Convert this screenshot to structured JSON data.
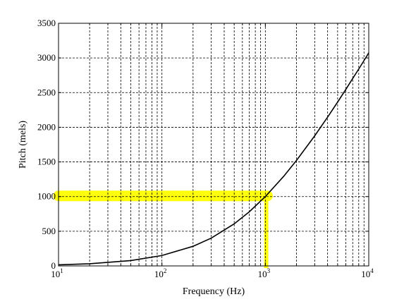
{
  "chart_data": {
    "type": "line",
    "title": "",
    "xlabel": "Frequency (Hz)",
    "ylabel": "Pitch (mels)",
    "xscale": "log",
    "xlim": [
      10,
      10000
    ],
    "ylim": [
      0,
      3500
    ],
    "grid": true,
    "grid_style": "dashed",
    "x_ticks": [
      {
        "value": 10,
        "base": "10",
        "exp": "1"
      },
      {
        "value": 100,
        "base": "10",
        "exp": "2"
      },
      {
        "value": 1000,
        "base": "10",
        "exp": "3"
      },
      {
        "value": 10000,
        "base": "10",
        "exp": "4"
      }
    ],
    "y_ticks": [
      {
        "value": 0,
        "label": "0"
      },
      {
        "value": 500,
        "label": "500"
      },
      {
        "value": 1000,
        "label": "1000"
      },
      {
        "value": 1500,
        "label": "1500"
      },
      {
        "value": 2000,
        "label": "2000"
      },
      {
        "value": 2500,
        "label": "2500"
      },
      {
        "value": 3000,
        "label": "3000"
      },
      {
        "value": 3500,
        "label": "3500"
      }
    ],
    "series": [
      {
        "color": "#000000",
        "x": [
          10,
          20,
          50,
          100,
          200,
          300,
          500,
          700,
          1000,
          1500,
          2000,
          3000,
          4000,
          5000,
          6000,
          7000,
          8000,
          9000,
          10000
        ],
        "y": [
          16,
          31,
          77,
          150,
          283,
          401,
          607,
          781,
          1000,
          1290,
          1521,
          1876,
          2146,
          2363,
          2546,
          2704,
          2840,
          2962,
          3073
        ]
      }
    ],
    "highlights": [
      {
        "color": "#ffff00",
        "type": "horizontal",
        "y": 1000,
        "x_from": 10,
        "x_to": 1050
      },
      {
        "color": "#ffff00",
        "type": "vertical",
        "x": 1020,
        "y_from": 0,
        "y_to": 1000
      }
    ]
  }
}
